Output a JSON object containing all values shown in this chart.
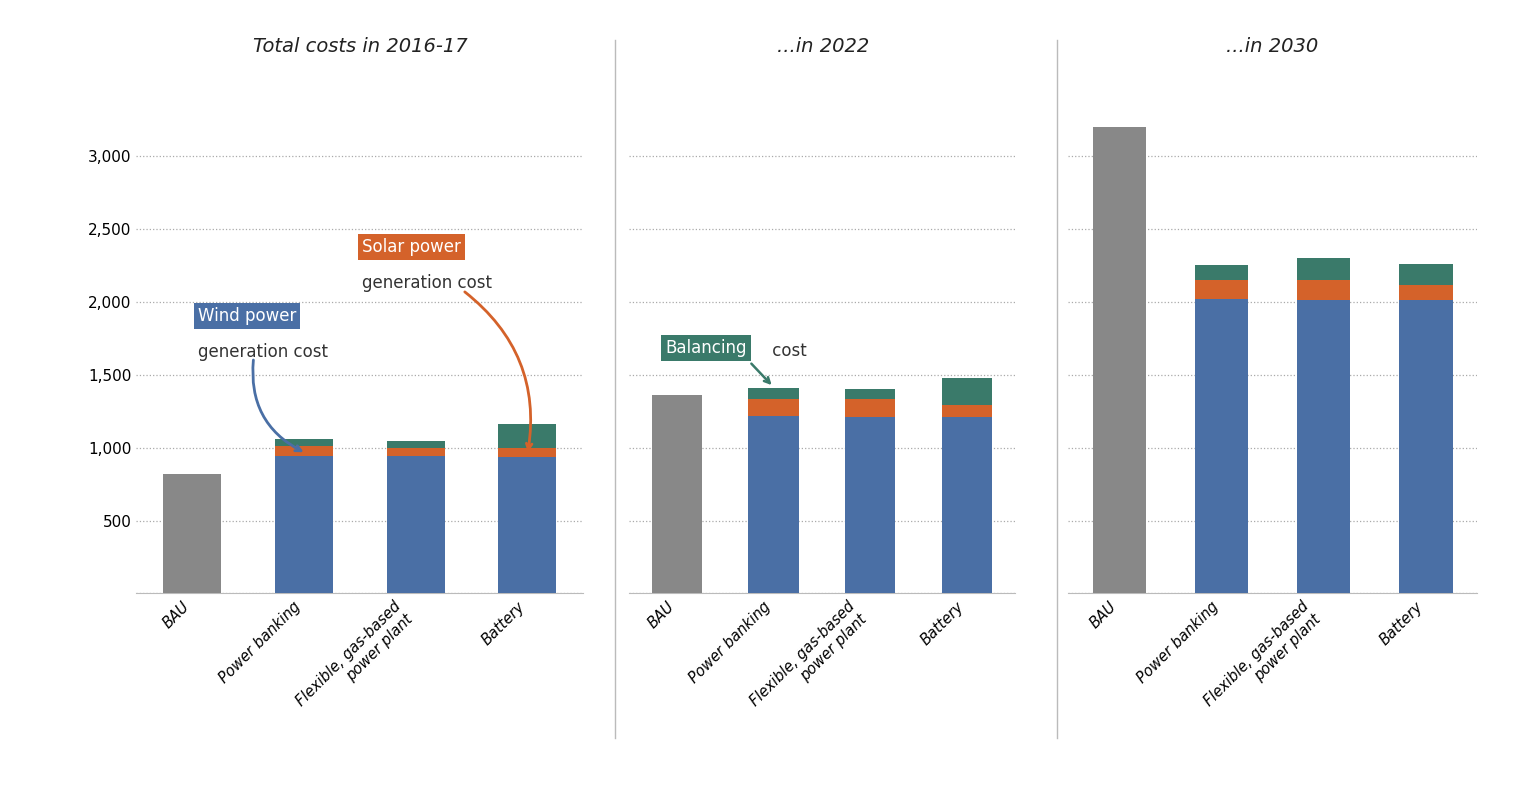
{
  "categories": [
    "BAU",
    "Power banking",
    "Flexible, gas-based\npower plant",
    "Battery"
  ],
  "group_2017": [
    {
      "gray": 820,
      "blue": 0,
      "orange": 0,
      "teal": 0
    },
    {
      "gray": 0,
      "blue": 940,
      "orange": 72,
      "teal": 48
    },
    {
      "gray": 0,
      "blue": 940,
      "orange": 58,
      "teal": 48
    },
    {
      "gray": 0,
      "blue": 935,
      "orange": 62,
      "teal": 165
    }
  ],
  "group_2022": [
    {
      "gray": 1360,
      "blue": 0,
      "orange": 0,
      "teal": 0
    },
    {
      "gray": 0,
      "blue": 1215,
      "orange": 118,
      "teal": 78
    },
    {
      "gray": 0,
      "blue": 1210,
      "orange": 122,
      "teal": 72
    },
    {
      "gray": 0,
      "blue": 1210,
      "orange": 82,
      "teal": 185
    }
  ],
  "group_2030": [
    {
      "gray": 3200,
      "blue": 0,
      "orange": 0,
      "teal": 0
    },
    {
      "gray": 0,
      "blue": 2020,
      "orange": 128,
      "teal": 105
    },
    {
      "gray": 0,
      "blue": 2010,
      "orange": 138,
      "teal": 152
    },
    {
      "gray": 0,
      "blue": 2010,
      "orange": 105,
      "teal": 145
    }
  ],
  "color_gray": "#888888",
  "color_blue": "#4a6fa5",
  "color_orange": "#d4622a",
  "color_teal": "#3a7a6a",
  "bg_color": "#ffffff",
  "ylim": [
    0,
    3300
  ],
  "yticks": [
    0,
    500,
    1000,
    1500,
    2000,
    2500,
    3000
  ],
  "title_left": "Total costs in 2016-17",
  "title_mid": "...in 2022",
  "title_right": "...in 2030"
}
